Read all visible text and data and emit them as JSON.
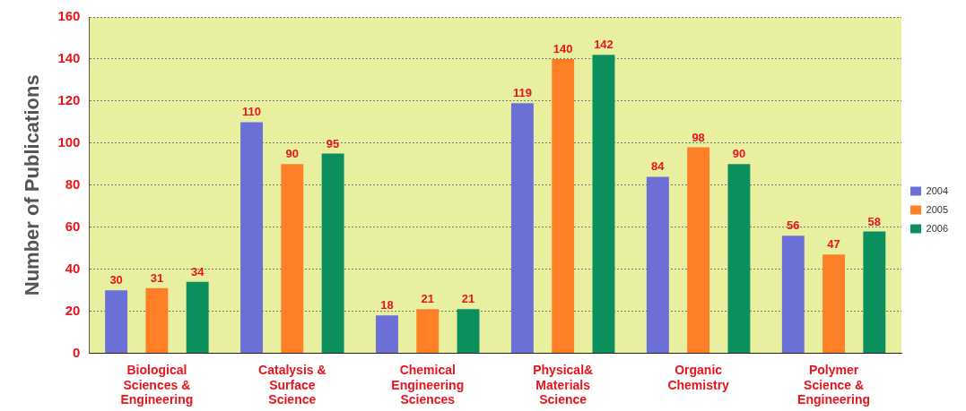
{
  "chart_data": {
    "type": "bar",
    "ylabel": "Number of Publications",
    "categories": [
      "Biological Sciences & Engineering",
      "Catalysis & Surface Science",
      "Chemical Engineering Sciences",
      "Physical& Materials Science",
      "Organic Chemistry",
      "Polymer Science & Engineering"
    ],
    "series": [
      {
        "name": "2004",
        "color": "#6b6fd6",
        "values": [
          30,
          110,
          18,
          119,
          84,
          56
        ]
      },
      {
        "name": "2005",
        "color": "#ff7f27",
        "values": [
          31,
          90,
          21,
          140,
          98,
          47
        ]
      },
      {
        "name": "2006",
        "color": "#0b8f5c",
        "values": [
          34,
          95,
          21,
          142,
          90,
          58
        ]
      }
    ],
    "ylim": [
      0,
      160
    ],
    "yticks": [
      0,
      20,
      40,
      60,
      80,
      100,
      120,
      140,
      160
    ],
    "grid": "y",
    "legend": "right",
    "data_labels": true
  }
}
